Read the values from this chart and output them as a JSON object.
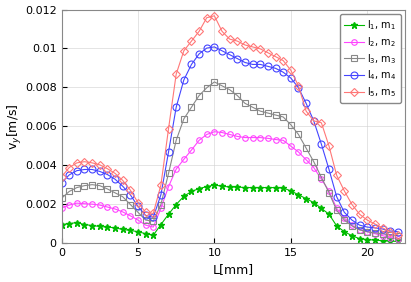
{
  "title": "",
  "xlabel": "L[mm]",
  "ylabel": "v$_y$[m/s]",
  "xlim": [
    0,
    22.5
  ],
  "ylim": [
    0,
    0.012
  ],
  "yticks": [
    0,
    0.002,
    0.004,
    0.006,
    0.008,
    0.01,
    0.012
  ],
  "xticks": [
    0,
    5,
    10,
    15,
    20
  ],
  "series": [
    {
      "label": "l$_1$, m$_1$",
      "color": "#00bb00",
      "marker": "*",
      "markersize": 5,
      "markevery": 1,
      "open": false,
      "x": [
        0.0,
        0.5,
        1.0,
        1.5,
        2.0,
        2.5,
        3.0,
        3.5,
        4.0,
        4.5,
        5.0,
        5.5,
        6.0,
        6.5,
        7.0,
        7.5,
        8.0,
        8.5,
        9.0,
        9.5,
        10.0,
        10.5,
        11.0,
        11.5,
        12.0,
        12.5,
        13.0,
        13.5,
        14.0,
        14.5,
        15.0,
        15.5,
        16.0,
        16.5,
        17.0,
        17.5,
        18.0,
        18.5,
        19.0,
        19.5,
        20.0,
        20.5,
        21.0,
        21.5,
        22.0
      ],
      "y": [
        0.00095,
        0.001,
        0.00105,
        0.00095,
        0.0009,
        0.00085,
        0.00082,
        0.00078,
        0.0007,
        0.00065,
        0.00058,
        0.00048,
        0.0004,
        0.00095,
        0.00148,
        0.00198,
        0.0024,
        0.00265,
        0.0028,
        0.0029,
        0.00298,
        0.00292,
        0.00288,
        0.00288,
        0.00285,
        0.00285,
        0.00285,
        0.00285,
        0.00285,
        0.00283,
        0.00268,
        0.00248,
        0.00228,
        0.00208,
        0.00178,
        0.00148,
        0.00088,
        0.00058,
        0.00038,
        0.00022,
        0.00018,
        0.00015,
        0.00012,
        0.0001,
        8e-05
      ]
    },
    {
      "label": "l$_2$, m$_2$",
      "color": "#ff44ff",
      "marker": "o",
      "markersize": 4,
      "markevery": 1,
      "open": true,
      "x": [
        0.0,
        0.5,
        1.0,
        1.5,
        2.0,
        2.5,
        3.0,
        3.5,
        4.0,
        4.5,
        5.0,
        5.5,
        6.0,
        6.5,
        7.0,
        7.5,
        8.0,
        8.5,
        9.0,
        9.5,
        10.0,
        10.5,
        11.0,
        11.5,
        12.0,
        12.5,
        13.0,
        13.5,
        14.0,
        14.5,
        15.0,
        15.5,
        16.0,
        16.5,
        17.0,
        17.5,
        18.0,
        18.5,
        19.0,
        19.5,
        20.0,
        20.5,
        21.0,
        21.5,
        22.0
      ],
      "y": [
        0.0018,
        0.00195,
        0.00205,
        0.00202,
        0.002,
        0.00195,
        0.00185,
        0.00175,
        0.0016,
        0.0014,
        0.00118,
        0.00092,
        0.00082,
        0.00178,
        0.0029,
        0.0038,
        0.0043,
        0.00478,
        0.00528,
        0.00558,
        0.00572,
        0.00568,
        0.00558,
        0.00548,
        0.00542,
        0.00542,
        0.00542,
        0.00538,
        0.00532,
        0.00528,
        0.00498,
        0.00468,
        0.00428,
        0.00388,
        0.00328,
        0.00268,
        0.00178,
        0.00128,
        0.00092,
        0.00068,
        0.00058,
        0.00048,
        0.00038,
        0.00028,
        0.00022
      ]
    },
    {
      "label": "l$_3$, m$_3$",
      "color": "#888888",
      "marker": "s",
      "markersize": 4,
      "markevery": 1,
      "open": true,
      "x": [
        0.0,
        0.5,
        1.0,
        1.5,
        2.0,
        2.5,
        3.0,
        3.5,
        4.0,
        4.5,
        5.0,
        5.5,
        6.0,
        6.5,
        7.0,
        7.5,
        8.0,
        8.5,
        9.0,
        9.5,
        10.0,
        10.5,
        11.0,
        11.5,
        12.0,
        12.5,
        13.0,
        13.5,
        14.0,
        14.5,
        15.0,
        15.5,
        16.0,
        16.5,
        17.0,
        17.5,
        18.0,
        18.5,
        19.0,
        19.5,
        20.0,
        20.5,
        21.0,
        21.5,
        22.0
      ],
      "y": [
        0.0023,
        0.00265,
        0.00285,
        0.00295,
        0.003,
        0.00295,
        0.00278,
        0.00258,
        0.00238,
        0.00198,
        0.00158,
        0.00118,
        0.00112,
        0.00198,
        0.00358,
        0.00528,
        0.00638,
        0.00698,
        0.00758,
        0.00798,
        0.00828,
        0.00808,
        0.00788,
        0.00758,
        0.00718,
        0.00698,
        0.00678,
        0.00668,
        0.00658,
        0.00648,
        0.00608,
        0.00558,
        0.00488,
        0.00418,
        0.00338,
        0.00258,
        0.00168,
        0.00118,
        0.00088,
        0.00068,
        0.00058,
        0.00052,
        0.00048,
        0.00042,
        0.00038
      ]
    },
    {
      "label": "l$_4$, m$_4$",
      "color": "#4444ff",
      "marker": "o",
      "markersize": 5,
      "markevery": 1,
      "open": true,
      "x": [
        0.0,
        0.5,
        1.0,
        1.5,
        2.0,
        2.5,
        3.0,
        3.5,
        4.0,
        4.5,
        5.0,
        5.5,
        6.0,
        6.5,
        7.0,
        7.5,
        8.0,
        8.5,
        9.0,
        9.5,
        10.0,
        10.5,
        11.0,
        11.5,
        12.0,
        12.5,
        13.0,
        13.5,
        14.0,
        14.5,
        15.0,
        15.5,
        16.0,
        16.5,
        17.0,
        17.5,
        18.0,
        18.5,
        19.0,
        19.5,
        20.0,
        20.5,
        21.0,
        21.5,
        22.0
      ],
      "y": [
        0.0031,
        0.0035,
        0.00372,
        0.00378,
        0.00378,
        0.00368,
        0.00352,
        0.00328,
        0.00292,
        0.00248,
        0.00188,
        0.00142,
        0.00132,
        0.00248,
        0.00468,
        0.00698,
        0.00838,
        0.00918,
        0.00972,
        0.01002,
        0.01008,
        0.00988,
        0.00968,
        0.00948,
        0.00928,
        0.00918,
        0.00918,
        0.00908,
        0.00898,
        0.00878,
        0.00848,
        0.00798,
        0.00718,
        0.00628,
        0.00508,
        0.00378,
        0.00238,
        0.00158,
        0.00118,
        0.00092,
        0.00082,
        0.00078,
        0.00072,
        0.00062,
        0.00058
      ]
    },
    {
      "label": "l$_5$, m$_5$",
      "color": "#ff7777",
      "marker": "D",
      "markersize": 4,
      "markevery": 1,
      "open": true,
      "x": [
        0.0,
        0.5,
        1.0,
        1.5,
        2.0,
        2.5,
        3.0,
        3.5,
        4.0,
        4.5,
        5.0,
        5.5,
        6.0,
        6.5,
        7.0,
        7.5,
        8.0,
        8.5,
        9.0,
        9.5,
        10.0,
        10.5,
        11.0,
        11.5,
        12.0,
        12.5,
        13.0,
        13.5,
        14.0,
        14.5,
        15.0,
        15.5,
        16.0,
        16.5,
        17.0,
        17.5,
        18.0,
        18.5,
        19.0,
        19.5,
        20.0,
        20.5,
        21.0,
        21.5,
        22.0
      ],
      "y": [
        0.0034,
        0.00388,
        0.00412,
        0.00418,
        0.00412,
        0.00402,
        0.00382,
        0.00358,
        0.00322,
        0.00272,
        0.00208,
        0.00158,
        0.00152,
        0.00298,
        0.00588,
        0.00868,
        0.00988,
        0.01038,
        0.01088,
        0.01158,
        0.01168,
        0.01088,
        0.01048,
        0.01038,
        0.01018,
        0.01008,
        0.00998,
        0.00978,
        0.00958,
        0.00938,
        0.00888,
        0.00808,
        0.00678,
        0.00628,
        0.00618,
        0.00498,
        0.00348,
        0.00268,
        0.00198,
        0.00148,
        0.00118,
        0.00098,
        0.00078,
        0.00058,
        0.00042
      ]
    }
  ],
  "background_color": "#ffffff",
  "legend_loc": "upper right",
  "linewidth": 0.8
}
